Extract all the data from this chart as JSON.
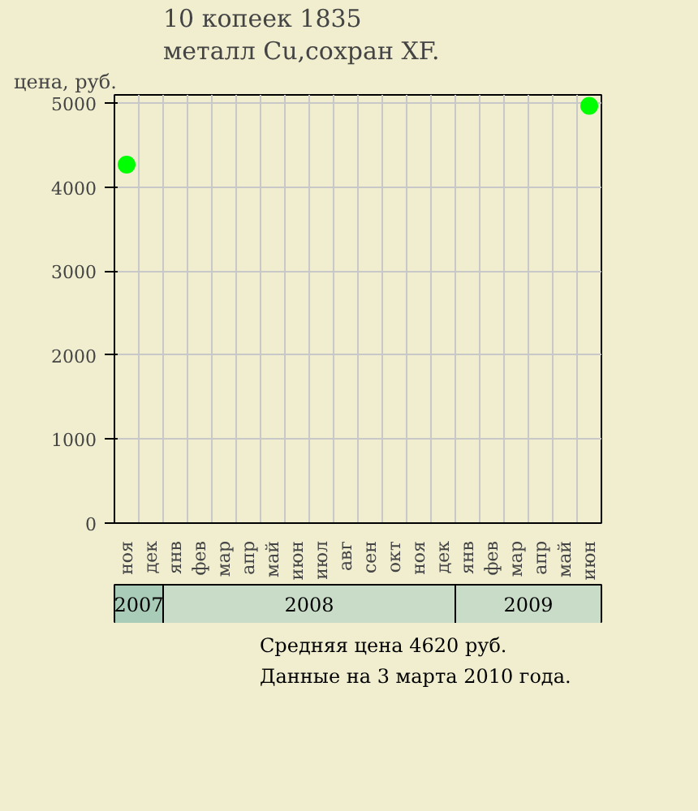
{
  "chart_data": {
    "type": "scatter",
    "title": "10 копеек 1835",
    "subtitle": "металл Cu,сохран XF.",
    "ylabel": "цена, руб.",
    "categories": [
      "ноя",
      "дек",
      "янв",
      "фев",
      "мар",
      "апр",
      "май",
      "июн",
      "июл",
      "авг",
      "сен",
      "окт",
      "ноя",
      "дек",
      "янв",
      "фев",
      "мар",
      "апр",
      "май",
      "июн"
    ],
    "ylim": [
      0,
      5100
    ],
    "yticks": [
      0,
      1000,
      2000,
      3000,
      4000,
      5000
    ],
    "series": [
      {
        "color": "#00ff00",
        "values": [
          4270,
          null,
          null,
          null,
          null,
          null,
          null,
          null,
          null,
          null,
          null,
          null,
          null,
          null,
          null,
          null,
          null,
          null,
          null,
          4970
        ]
      }
    ],
    "marker": "circle",
    "grid": true,
    "annotations": [
      "2007",
      "2008",
      "2009",
      "Средняя цена 4620 руб.",
      "Данные на 3 марта 2010 года."
    ]
  }
}
